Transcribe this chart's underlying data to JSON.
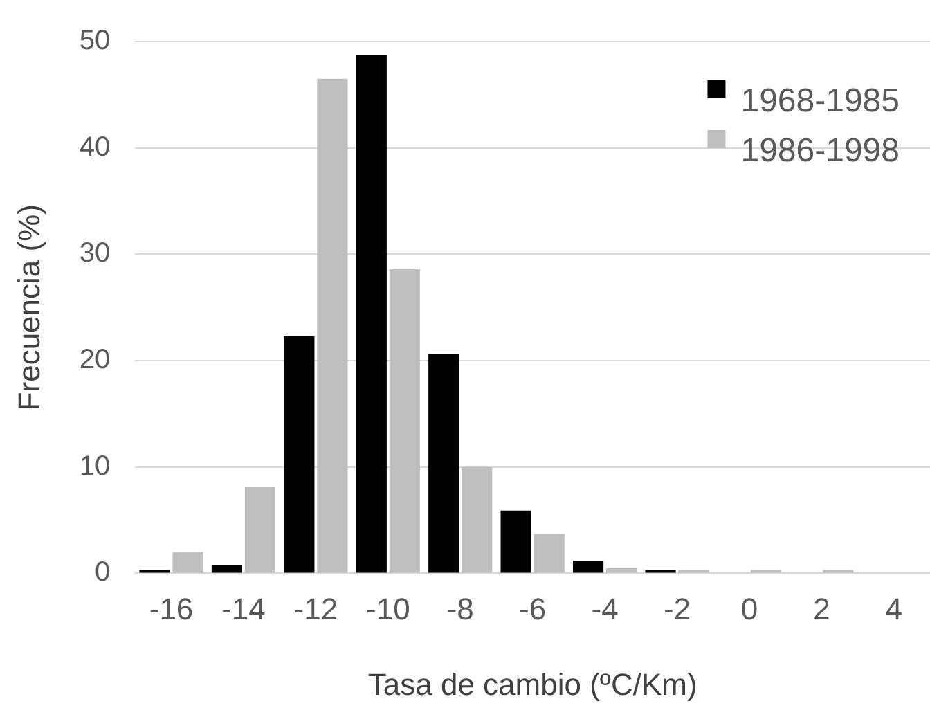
{
  "chart_data": {
    "type": "bar",
    "xlabel": "Tasa de cambio (ºC/Km)",
    "ylabel": "Frecuencia (%)",
    "categories": [
      "-16",
      "-14",
      "-12",
      "-10",
      "-8",
      "-6",
      "-4",
      "-2",
      "0",
      "2",
      "4"
    ],
    "series": [
      {
        "name": "1968-1985",
        "color": "#000000",
        "values": [
          0.3,
          0.8,
          22.3,
          48.7,
          20.6,
          5.9,
          1.2,
          0.3,
          0,
          0,
          0
        ]
      },
      {
        "name": "1986-1998",
        "color": "#bfbfbf",
        "values": [
          2,
          8.1,
          46.5,
          28.6,
          10,
          3.7,
          0.5,
          0.3,
          0.3,
          0.3,
          0
        ]
      }
    ],
    "ylim": [
      0,
      50
    ],
    "yticks": [
      0,
      10,
      20,
      30,
      40,
      50
    ],
    "grid": "y",
    "legend": "top right"
  }
}
